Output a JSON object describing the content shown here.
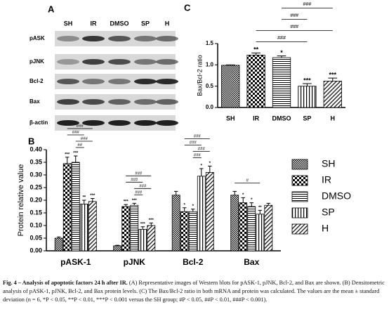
{
  "panel_a": {
    "label": "A",
    "lanes": [
      "SH",
      "IR",
      "DMSO",
      "SP",
      "H"
    ],
    "rows": [
      "pASK",
      "pJNK",
      "Bcl-2",
      "Bax",
      "β-actin"
    ]
  },
  "chart_data": [
    {
      "type": "bar",
      "panel": "C",
      "y_label": "Bax/Bcl-2 ratio",
      "categories": [
        "SH",
        "IR",
        "DMSO",
        "SP",
        "H"
      ],
      "values": [
        0.99,
        1.23,
        1.17,
        0.5,
        0.62
      ],
      "errors": [
        0.01,
        0.05,
        0.04,
        0.06,
        0.07
      ],
      "patterns": [
        "checker",
        "cross",
        "hlines",
        "vlines",
        "diag"
      ],
      "annotations": [
        null,
        "**",
        "*",
        "***",
        "***"
      ],
      "brackets": [
        {
          "from": 1,
          "to": 3,
          "label": "###"
        },
        {
          "from": 1,
          "to": 4,
          "label": "###"
        },
        {
          "from": 2,
          "to": 3,
          "label": "###"
        },
        {
          "from": 2,
          "to": 4,
          "label": "###"
        }
      ],
      "ylim": [
        0,
        1.5
      ],
      "yticks": [
        {
          "value": 0,
          "label": "0.0"
        },
        0.5,
        {
          "value": 1,
          "label": "1.0"
        },
        1.5
      ]
    },
    {
      "type": "bar",
      "panel": "B",
      "y_label": "Protein relative value",
      "categories": [
        "pASK-1",
        "pJNK",
        "Bcl-2",
        "Bax"
      ],
      "series": [
        {
          "name": "SH",
          "pattern": "checker",
          "values": [
            0.05,
            0.02,
            0.22,
            0.22
          ],
          "errors": [
            0.005,
            0.002,
            0.015,
            0.015
          ],
          "annotations": [
            null,
            null,
            null,
            null
          ]
        },
        {
          "name": "IR",
          "pattern": "cross",
          "values": [
            0.345,
            0.175,
            0.155,
            0.19
          ],
          "errors": [
            0.025,
            0.008,
            0.015,
            0.02
          ],
          "annotations": [
            "***",
            "***",
            "*",
            "*"
          ]
        },
        {
          "name": "DMSO",
          "pattern": "hlines",
          "values": [
            0.35,
            0.18,
            0.155,
            0.175
          ],
          "errors": [
            0.025,
            0.008,
            0.01,
            0.015
          ],
          "annotations": [
            "***",
            "***",
            "*",
            "*"
          ]
        },
        {
          "name": "SP",
          "pattern": "vlines",
          "values": [
            0.185,
            0.085,
            0.295,
            0.145
          ],
          "errors": [
            0.015,
            0.01,
            0.03,
            0.015
          ],
          "annotations": [
            "**",
            "***",
            "*",
            "**"
          ]
        },
        {
          "name": "H",
          "pattern": "diag",
          "values": [
            0.195,
            0.1,
            0.31,
            0.18
          ],
          "errors": [
            0.012,
            0.01,
            0.025,
            0.008
          ],
          "annotations": [
            "***",
            "***",
            "*",
            null
          ]
        }
      ],
      "brackets": [
        [
          {
            "from": 2,
            "to": 3,
            "label": "##"
          },
          {
            "from": 2,
            "to": 4,
            "label": "###"
          },
          {
            "from": 1,
            "to": 3,
            "label": "###"
          },
          {
            "from": 1,
            "to": 4,
            "label": "###"
          }
        ],
        [
          {
            "from": 2,
            "to": 3,
            "label": "###"
          },
          {
            "from": 2,
            "to": 4,
            "label": "###"
          },
          {
            "from": 1,
            "to": 3,
            "label": "###"
          },
          {
            "from": 1,
            "to": 4,
            "label": "###"
          }
        ],
        [
          {
            "from": 2,
            "to": 3,
            "label": "###"
          },
          {
            "from": 2,
            "to": 4,
            "label": "###"
          },
          {
            "from": 1,
            "to": 3,
            "label": "###"
          },
          {
            "from": 1,
            "to": 4,
            "label": "###"
          }
        ],
        [
          {
            "from": 0,
            "to": 3,
            "label": "#"
          }
        ]
      ],
      "ylim": [
        0,
        0.4
      ],
      "yticks": [
        {
          "value": 0,
          "label": "0.00"
        },
        0.05,
        {
          "value": 0.1,
          "label": "0.10"
        },
        0.15,
        {
          "value": 0.2,
          "label": "0.20"
        },
        0.25,
        {
          "value": 0.3,
          "label": "0.30"
        },
        0.35,
        {
          "value": 0.4,
          "label": "0.40"
        }
      ]
    }
  ],
  "caption": {
    "title": "Fig. 4 – Analysis of apoptotic factors 24 h after IR.",
    "body": "(A) Representative images of Western blots for pASK-1, pJNK, Bcl-2, and Bax are shown. (B) Densitometric analysis of pASK-1, pJNK, Bcl-2, and Bax protein levels. (C) The Bax/Bcl-2 ratio in both mRNA and protein was calculated. The values are the mean ± standard deviation (n = 6, *P < 0.05, **P < 0.01, ***P < 0.001 versus the SH group; #P < 0.05, ##P < 0.01, ###P < 0.001)."
  }
}
